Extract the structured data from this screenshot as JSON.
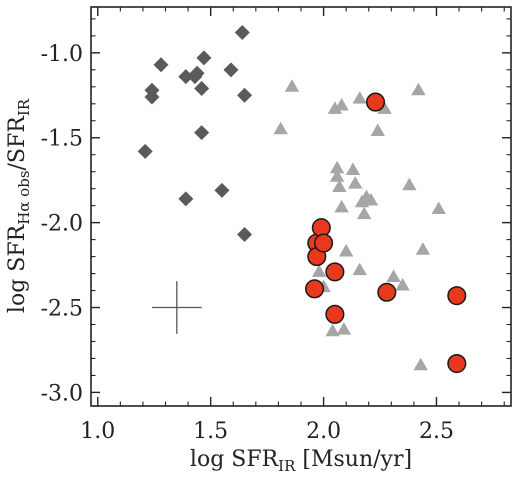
{
  "chart_data": {
    "type": "scatter",
    "xlabel": {
      "main": "log SFR",
      "sub": "IR",
      "unit": " [Msun/yr]"
    },
    "ylabel": {
      "main": "log SFR",
      "sub1": "Hα obs",
      "mid": "/SFR",
      "sub2": "IR"
    },
    "xlim": [
      0.97,
      2.83
    ],
    "ylim": [
      -3.08,
      -0.73
    ],
    "xticks": [
      1.0,
      1.5,
      2.0,
      2.5
    ],
    "xtick_labels": [
      "1.0",
      "1.5",
      "2.0",
      "2.5"
    ],
    "yticks": [
      -1.0,
      -1.5,
      -2.0,
      -2.5,
      -3.0
    ],
    "ytick_labels": [
      "-1.0",
      "-1.5",
      "-2.0",
      "-2.5",
      "-3.0"
    ],
    "grid": false,
    "colors": {
      "background": "#ffffff",
      "diamond": "#5a5a5a",
      "triangle": "#a6a6a6",
      "circle": "#e8391d",
      "circle_edge": "#1a1a1a",
      "axis": "#222222",
      "errorbar": "#555555"
    },
    "series": [
      {
        "marker": "diamond",
        "points": [
          [
            1.21,
            -1.58
          ],
          [
            1.24,
            -1.22
          ],
          [
            1.24,
            -1.26
          ],
          [
            1.28,
            -1.07
          ],
          [
            1.39,
            -1.14
          ],
          [
            1.39,
            -1.86
          ],
          [
            1.43,
            -1.14
          ],
          [
            1.44,
            -1.12
          ],
          [
            1.46,
            -1.21
          ],
          [
            1.46,
            -1.47
          ],
          [
            1.47,
            -1.03
          ],
          [
            1.55,
            -1.81
          ],
          [
            1.59,
            -1.1
          ],
          [
            1.64,
            -0.88
          ],
          [
            1.65,
            -1.25
          ],
          [
            1.65,
            -2.07
          ]
        ]
      },
      {
        "marker": "triangle",
        "points": [
          [
            1.81,
            -1.45
          ],
          [
            1.86,
            -1.2
          ],
          [
            1.98,
            -2.29
          ],
          [
            2.0,
            -2.38
          ],
          [
            2.04,
            -2.64
          ],
          [
            2.05,
            -1.33
          ],
          [
            2.06,
            -1.68
          ],
          [
            2.06,
            -1.73
          ],
          [
            2.07,
            -1.79
          ],
          [
            2.08,
            -1.31
          ],
          [
            2.08,
            -1.91
          ],
          [
            2.09,
            -2.63
          ],
          [
            2.1,
            -2.17
          ],
          [
            2.13,
            -1.69
          ],
          [
            2.14,
            -1.77
          ],
          [
            2.16,
            -1.27
          ],
          [
            2.16,
            -2.28
          ],
          [
            2.17,
            -1.88
          ],
          [
            2.18,
            -1.95
          ],
          [
            2.19,
            -1.85
          ],
          [
            2.21,
            -1.87
          ],
          [
            2.24,
            -1.46
          ],
          [
            2.27,
            -1.33
          ],
          [
            2.31,
            -2.32
          ],
          [
            2.35,
            -2.37
          ],
          [
            2.38,
            -1.78
          ],
          [
            2.42,
            -1.22
          ],
          [
            2.43,
            -2.84
          ],
          [
            2.44,
            -2.16
          ],
          [
            2.51,
            -1.92
          ]
        ]
      },
      {
        "marker": "circle",
        "points": [
          [
            1.96,
            -2.39
          ],
          [
            1.97,
            -2.12
          ],
          [
            1.97,
            -2.2
          ],
          [
            1.99,
            -2.03
          ],
          [
            2.0,
            -2.12
          ],
          [
            2.05,
            -2.29
          ],
          [
            2.05,
            -2.54
          ],
          [
            2.23,
            -1.29
          ],
          [
            2.28,
            -2.41
          ],
          [
            2.59,
            -2.43
          ],
          [
            2.59,
            -2.83
          ]
        ]
      }
    ],
    "errorbar": {
      "x": 1.35,
      "y": -2.5,
      "xerr": 0.11,
      "yerr": 0.155
    }
  }
}
